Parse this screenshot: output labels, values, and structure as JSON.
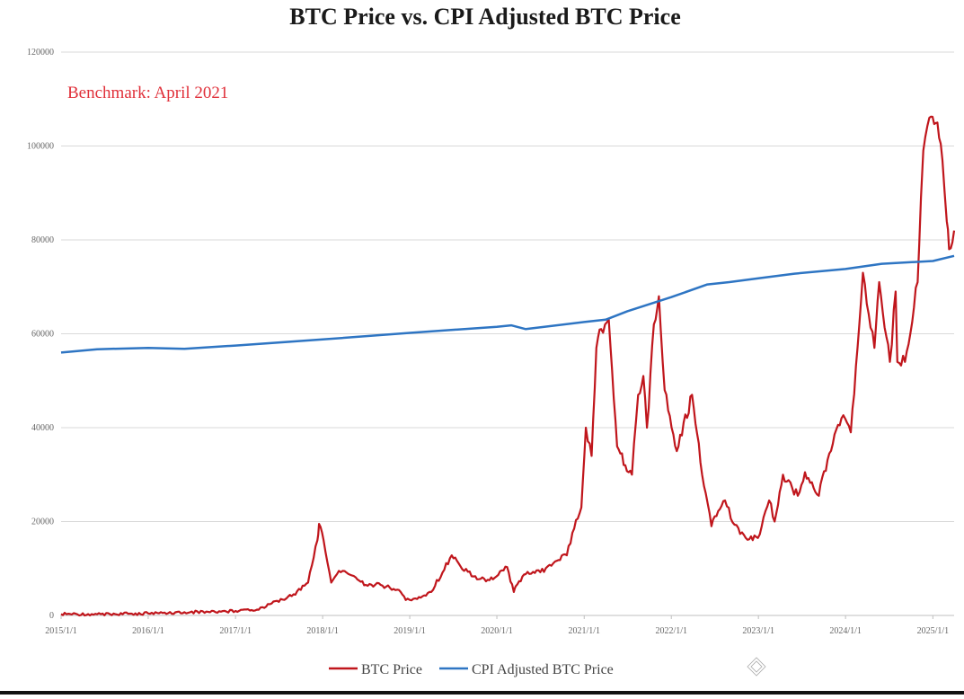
{
  "chart_data": {
    "type": "line",
    "title": "BTC Price vs. CPI Adjusted BTC Price",
    "annotation": "Benchmark: April 2021",
    "xlabel": "",
    "ylabel": "",
    "ylim": [
      0,
      120000
    ],
    "yticks": [
      0,
      20000,
      40000,
      60000,
      80000,
      100000,
      120000
    ],
    "xlim": [
      "2015-01-01",
      "2025-03-31"
    ],
    "xticks": [
      "2015/1/1",
      "2016/1/1",
      "2017/1/1",
      "2018/1/1",
      "2019/1/1",
      "2020/1/1",
      "2021/1/1",
      "2022/1/1",
      "2023/1/1",
      "2024/1/1",
      "2025/1/1"
    ],
    "grid": "horizontal",
    "legend_position": "bottom",
    "series": [
      {
        "name": "BTC Price",
        "color": "#c0161c",
        "x": [
          "2015-01-01",
          "2015-06-01",
          "2016-01-01",
          "2016-06-01",
          "2017-01-01",
          "2017-04-01",
          "2017-06-01",
          "2017-09-01",
          "2017-11-01",
          "2017-12-10",
          "2017-12-17",
          "2018-01-05",
          "2018-02-06",
          "2018-03-10",
          "2018-05-05",
          "2018-07-01",
          "2018-09-01",
          "2018-11-10",
          "2018-12-15",
          "2019-02-01",
          "2019-04-01",
          "2019-06-26",
          "2019-08-01",
          "2019-09-25",
          "2019-12-01",
          "2020-02-13",
          "2020-03-12",
          "2020-03-20",
          "2020-05-01",
          "2020-07-01",
          "2020-09-01",
          "2020-10-20",
          "2020-11-20",
          "2020-12-20",
          "2021-01-08",
          "2021-02-01",
          "2021-02-21",
          "2021-03-13",
          "2021-04-14",
          "2021-05-19",
          "2021-06-22",
          "2021-07-20",
          "2021-08-15",
          "2021-09-06",
          "2021-09-21",
          "2021-10-20",
          "2021-11-10",
          "2021-12-04",
          "2022-01-24",
          "2022-03-29",
          "2022-05-10",
          "2022-06-18",
          "2022-08-14",
          "2022-09-15",
          "2022-11-09",
          "2022-12-30",
          "2023-02-15",
          "2023-03-10",
          "2023-04-14",
          "2023-06-15",
          "2023-07-15",
          "2023-09-11",
          "2023-10-25",
          "2023-12-15",
          "2024-01-23",
          "2024-02-28",
          "2024-03-14",
          "2024-05-01",
          "2024-05-21",
          "2024-07-05",
          "2024-07-29",
          "2024-08-05",
          "2024-09-06",
          "2024-10-29",
          "2024-11-12",
          "2024-11-22",
          "2024-12-17",
          "2025-01-20",
          "2025-02-10",
          "2025-02-28",
          "2025-03-10",
          "2025-03-31"
        ],
        "values": [
          300,
          240,
          430,
          680,
          950,
          1250,
          2550,
          4500,
          7000,
          16000,
          19500,
          16000,
          7000,
          9500,
          8500,
          6500,
          6500,
          5500,
          3300,
          3500,
          5000,
          12800,
          10500,
          8300,
          7500,
          10300,
          5000,
          6200,
          8800,
          9200,
          11500,
          12800,
          18500,
          23000,
          40000,
          34000,
          57000,
          61000,
          63000,
          36000,
          32000,
          30000,
          47000,
          51000,
          40000,
          62000,
          68000,
          48000,
          35000,
          47000,
          30000,
          19000,
          24500,
          19800,
          16500,
          16500,
          24500,
          20000,
          30000,
          25500,
          30500,
          25500,
          34500,
          42000,
          39000,
          62000,
          73000,
          57000,
          71000,
          54000,
          69000,
          54000,
          54000,
          71000,
          89000,
          99000,
          106000,
          105000,
          97000,
          84000,
          78000,
          82000
        ]
      },
      {
        "name": "CPI Adjusted BTC Price",
        "color": "#2e75c3",
        "x": [
          "2015-01-01",
          "2015-06-01",
          "2016-01-01",
          "2016-06-01",
          "2017-01-01",
          "2018-01-01",
          "2019-01-01",
          "2020-01-01",
          "2020-03-01",
          "2020-05-01",
          "2021-01-01",
          "2021-04-01",
          "2021-07-01",
          "2022-01-01",
          "2022-06-01",
          "2022-09-01",
          "2023-01-01",
          "2023-06-01",
          "2024-01-01",
          "2024-06-01",
          "2025-01-01",
          "2025-03-31"
        ],
        "values": [
          56000,
          56700,
          57000,
          56800,
          57500,
          58800,
          60200,
          61500,
          61800,
          61000,
          62500,
          63000,
          64800,
          67800,
          70500,
          71000,
          71800,
          72800,
          73800,
          74900,
          75500,
          76600
        ]
      }
    ]
  }
}
